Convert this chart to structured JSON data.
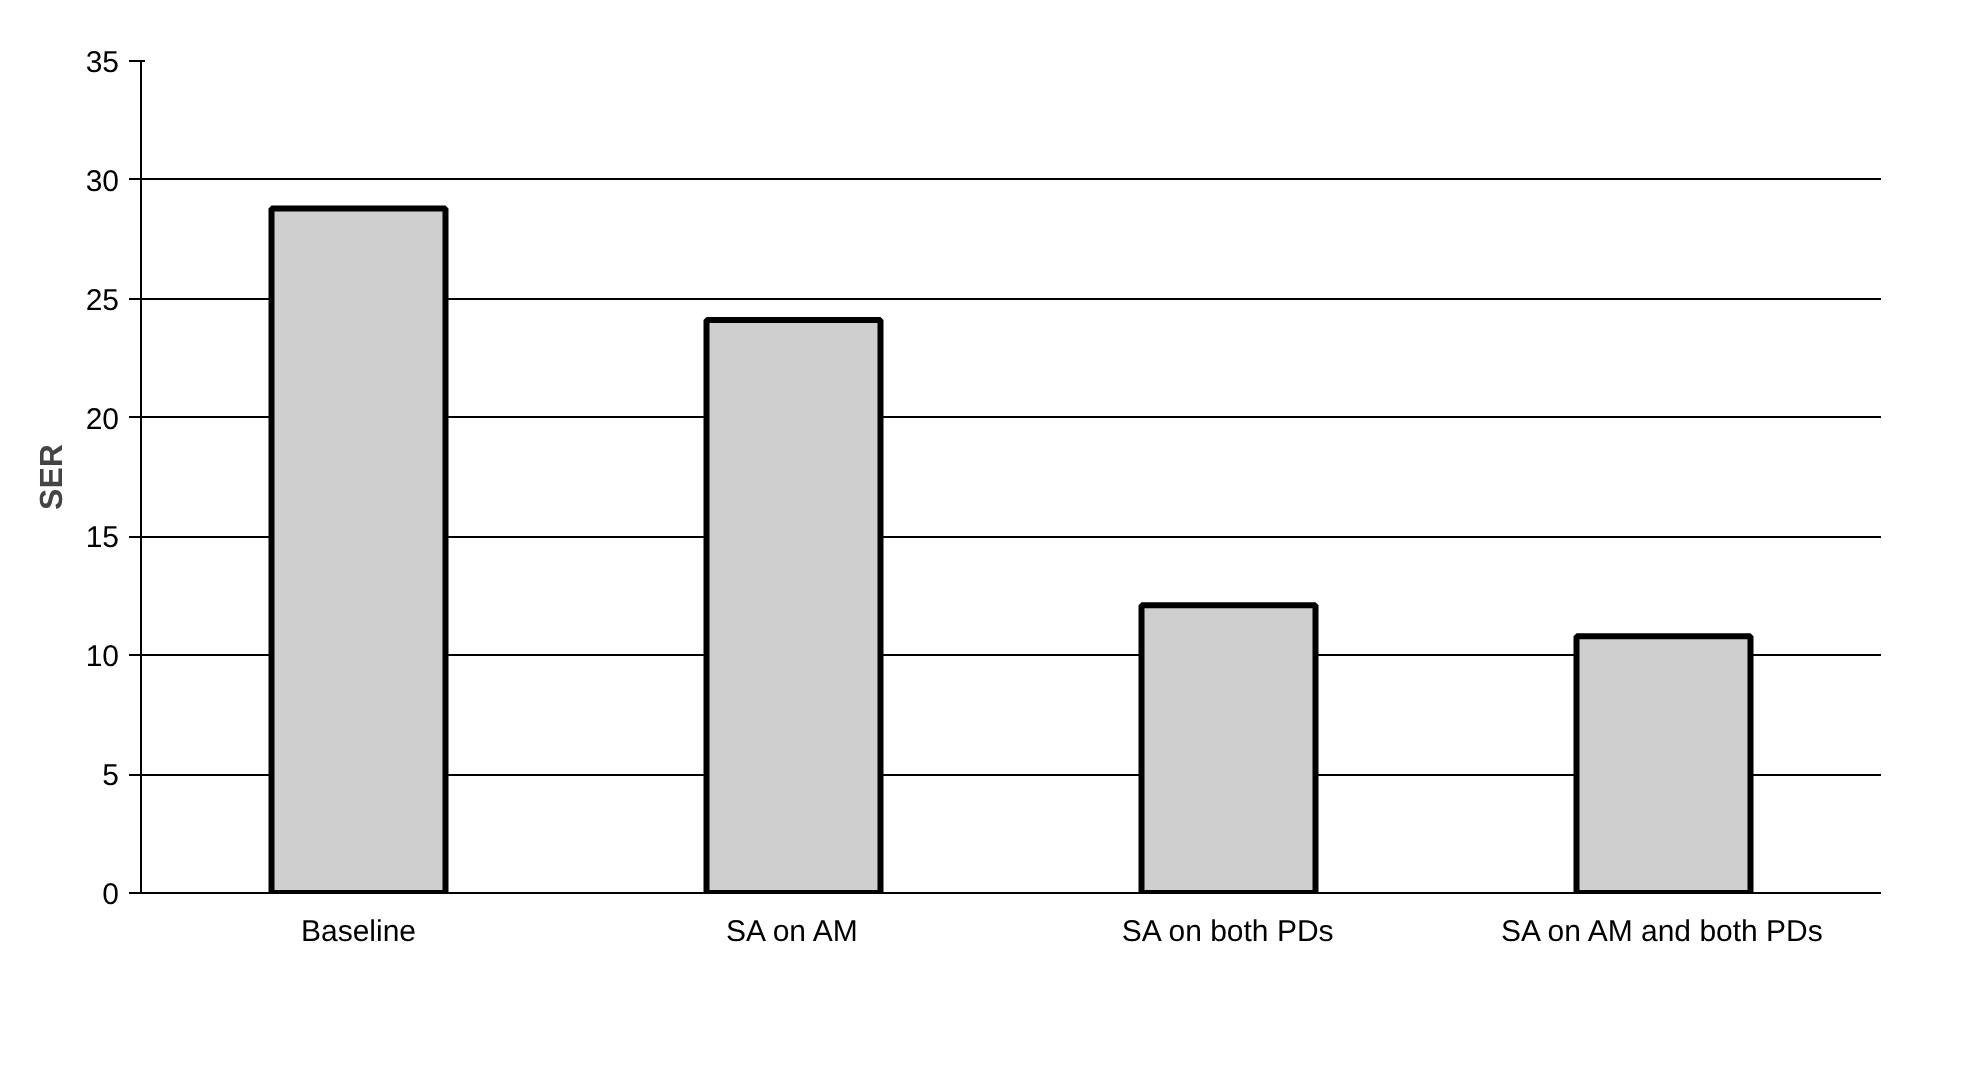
{
  "chart_data": {
    "type": "bar",
    "ylabel": "SER",
    "categories": [
      "Baseline",
      "SA on AM",
      "SA on both PDs",
      "SA on AM and both PDs"
    ],
    "values": [
      28.8,
      24.1,
      12.1,
      10.8
    ],
    "color": "#cfcfcf",
    "ylim": [
      0,
      35
    ],
    "yticks": [
      0,
      5,
      10,
      15,
      20,
      25,
      30,
      35
    ],
    "grid": "y"
  }
}
